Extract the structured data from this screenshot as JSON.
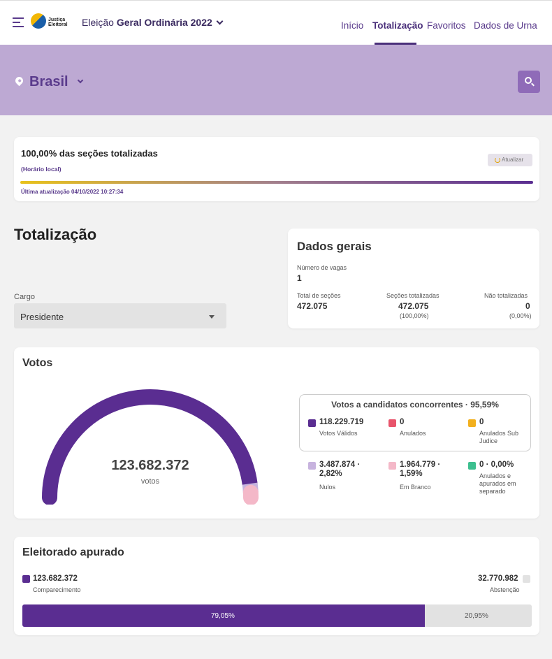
{
  "header": {
    "logo_text_1": "Justiça",
    "logo_text_2": "Eleitoral",
    "election_prefix": "Eleição",
    "election_name": "Geral Ordinária 2022",
    "nav": [
      "Início",
      "Totalização",
      "Favoritos",
      "Dados de Urna"
    ],
    "active_nav": "Totalização"
  },
  "location": {
    "name": "Brasil"
  },
  "status": {
    "title": "100,00% das seções totalizadas",
    "subtitle": "(Horário local)",
    "update_button": "Atualizar",
    "last_update": "Última atualização 04/10/2022 10:27:34"
  },
  "totalizacao": {
    "title": "Totalização",
    "cargo_label": "Cargo",
    "cargo_value": "Presidente"
  },
  "dados_gerais": {
    "title": "Dados gerais",
    "vagas_label": "Número de vagas",
    "vagas_value": "1",
    "secoes_label": "Total de seções",
    "secoes_value": "472.075",
    "totalizadas_label": "Seções totalizadas",
    "totalizadas_value": "472.075",
    "totalizadas_pct": "(100,00%)",
    "nao_label": "Não totalizadas",
    "nao_value": "0",
    "nao_pct": "(0,00%)"
  },
  "votos": {
    "title": "Votos",
    "total": "123.682.372",
    "total_label": "votos",
    "gauge_fractions": {
      "validos": 0.9559,
      "nulos": 0.0282,
      "brancos": 0.0159
    },
    "concorrentes_title": "Votos a candidatos concorrentes · 95,59%",
    "validos_value": "118.229.719",
    "validos_label": "Votos Válidos",
    "anulados_value": "0",
    "anulados_label": "Anulados",
    "sub_judice_value": "0",
    "sub_judice_label_1": "Anulados Sub",
    "sub_judice_label_2": "Judice",
    "nulos_value_1": "3.487.874 ·",
    "nulos_value_2": "2,82%",
    "nulos_label": "Nulos",
    "branco_value_1": "1.964.779 ·",
    "branco_value_2": "1,59%",
    "branco_label": "Em Branco",
    "separado_value": "0 · 0,00%",
    "separado_label_1": "Anulados e",
    "separado_label_2": "apurados em",
    "separado_label_3": "separado"
  },
  "eleitorado": {
    "title": "Eleitorado apurado",
    "comparecimento_value": "123.682.372",
    "comparecimento_label": "Comparecimento",
    "abstencao_value": "32.770.982",
    "abstencao_label": "Abstenção",
    "comparecimento_pct": "79,05%",
    "abstencao_pct": "20,95%",
    "comparecimento_fraction": 0.7905
  },
  "colors": {
    "primary": "#5a2d91",
    "banner": "#bda9d3",
    "nulos": "#c7b3de",
    "branco": "#f4b8c8",
    "anulados": "#e8546b",
    "sub_judice": "#f2b01e",
    "separado": "#3dbf8f",
    "abstencao": "#e2e2e2"
  }
}
